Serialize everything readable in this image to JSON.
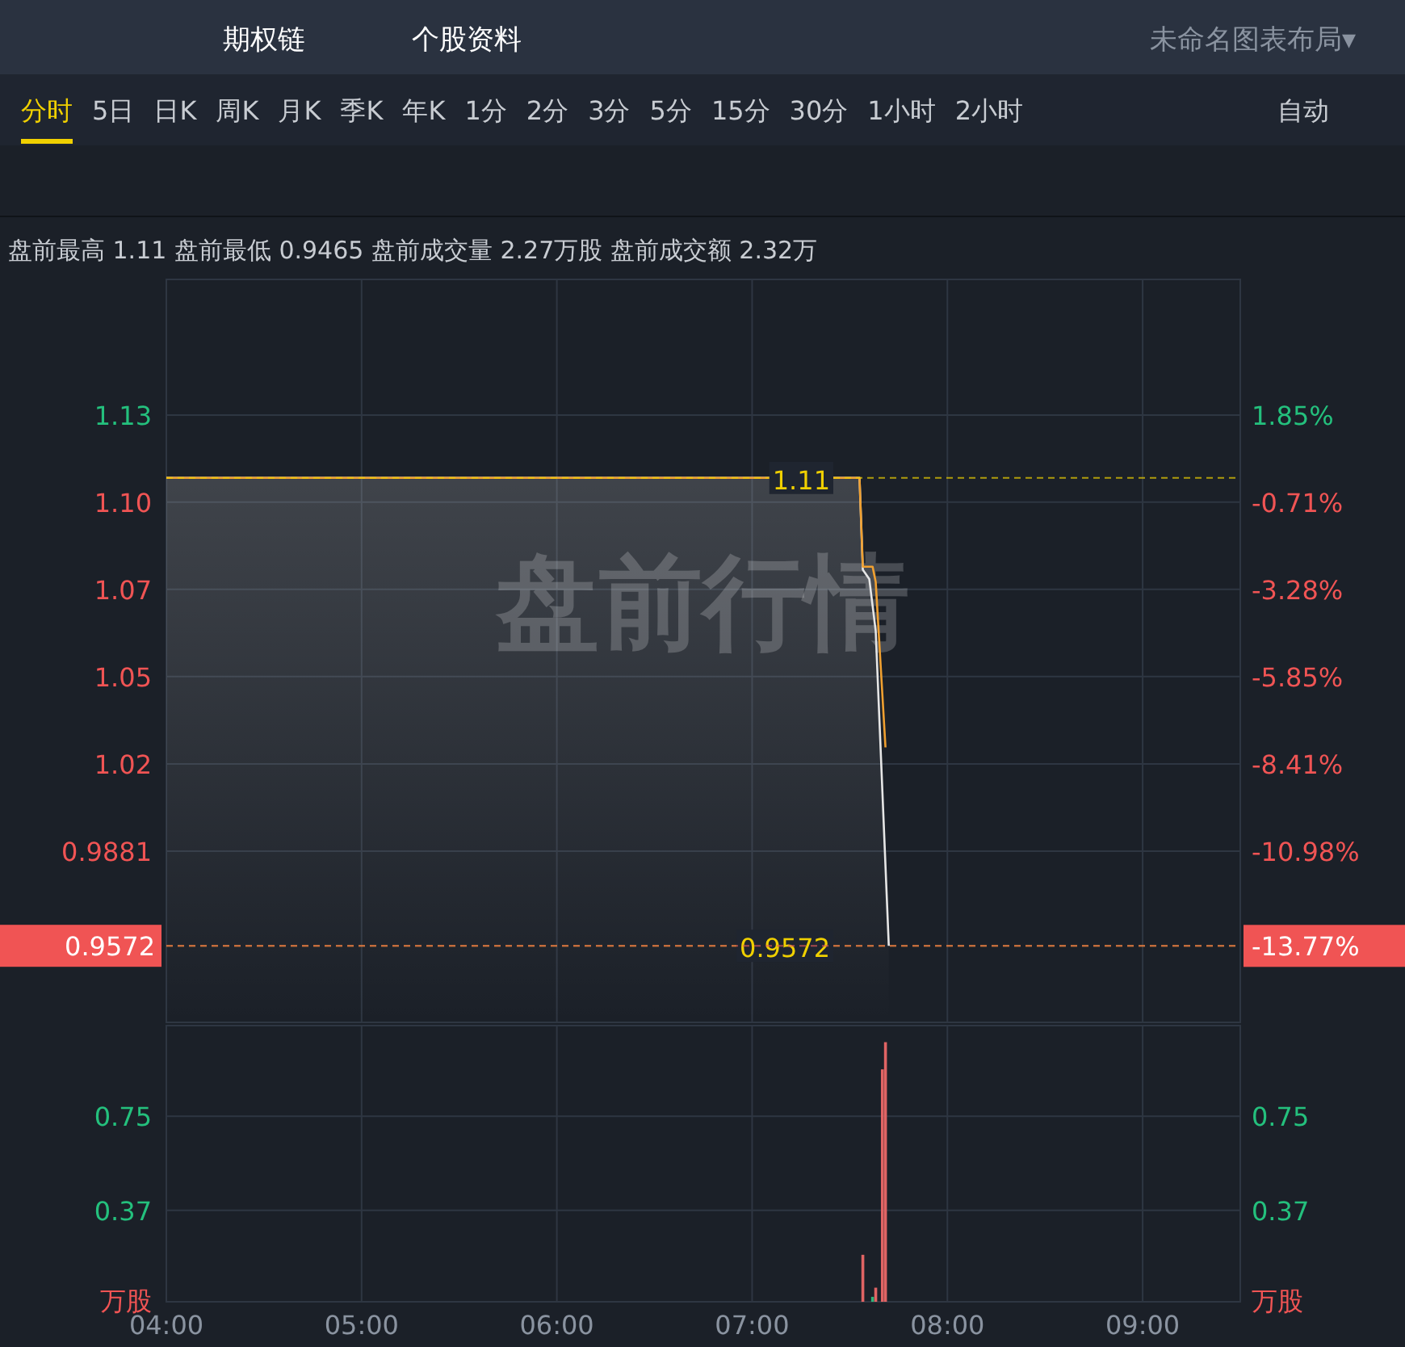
{
  "chart_data": [
    {
      "type": "other",
      "annotations": [
        "期权链",
        "个股资料",
        "未命名图表布局▾",
        "分时",
        "5日",
        "日K",
        "周K",
        "月K",
        "季K",
        "年K",
        "1分",
        "2分",
        "3分",
        "5分",
        "15分",
        "30分",
        "1小时",
        "2小时",
        "自动"
      ]
    },
    {
      "type": "line",
      "title": "盘前最高 1.11 盘前最低 0.9465 盘前成交量 2.27万股 盘前成交额 2.32万",
      "annotations": [
        "盘前行情"
      ],
      "tick_labels": "y",
      "xlim": [
        4,
        9.5
      ],
      "xticks": [
        {
          "value": 4,
          "label": null
        },
        {
          "value": 5,
          "label": null
        },
        {
          "value": 6,
          "label": null
        },
        {
          "value": 7,
          "label": null
        },
        {
          "value": 8,
          "label": null
        },
        {
          "value": 9,
          "label": null
        }
      ],
      "ylim": [
        0.9322,
        1.1748
      ],
      "yticks": [
        {
          "value": 1.1305,
          "label": "1.13"
        },
        {
          "value": 1.1021,
          "label": "1.10"
        },
        {
          "value": 1.0736,
          "label": "1.07"
        },
        {
          "value": 1.0451,
          "label": "1.05"
        },
        {
          "value": 1.0166,
          "label": "1.02"
        },
        {
          "value": 0.9881,
          "label": "0.9881"
        },
        {
          "value": 0.9572,
          "label": "0.9572"
        }
      ],
      "y2lim": [
        -16.02,
        5.84
      ],
      "y2ticks": [
        {
          "value": 1.85,
          "label": "1.85%"
        },
        {
          "value": -0.71,
          "label": "-0.71%"
        },
        {
          "value": -3.28,
          "label": "-3.28%"
        },
        {
          "value": -5.85,
          "label": "-5.85%"
        },
        {
          "value": -8.41,
          "label": "-8.41%"
        },
        {
          "value": -10.98,
          "label": "-10.98%"
        },
        {
          "value": -13.77,
          "label": "-13.77%"
        }
      ],
      "grid": true,
      "ref_lines": [
        {
          "axis": "y",
          "value": 0.9572,
          "label": "0.9572",
          "color": "#f0d000",
          "line_style": "dashed"
        },
        {
          "axis": "y2",
          "value": -13.77,
          "color": "#e05a5a",
          "line_style": "dashed"
        },
        {
          "axis": "y",
          "value": 1.11,
          "label": "1.11",
          "color": "#f0d000",
          "line_style": "dashed"
        }
      ],
      "series": [
        {
          "type": "area",
          "color": "#e6e6e6",
          "x": [
            4,
            7.55,
            7.567,
            7.6,
            7.633,
            7.7
          ],
          "values": [
            1.11,
            1.11,
            1.08,
            1.077,
            1.06,
            0.9572
          ]
        },
        {
          "type": "line",
          "color": "#f0a030",
          "x": [
            4,
            7.55,
            7.567,
            7.617,
            7.633,
            7.683
          ],
          "values": [
            1.11,
            1.11,
            1.081,
            1.081,
            1.076,
            1.022
          ]
        }
      ]
    },
    {
      "type": "bar",
      "xlim": [
        4,
        9.5
      ],
      "xticks": [
        {
          "value": 4,
          "label": "04:00"
        },
        {
          "value": 5,
          "label": "05:00"
        },
        {
          "value": 6,
          "label": "06:00"
        },
        {
          "value": 7,
          "label": "07:00"
        },
        {
          "value": 8,
          "label": "08:00"
        },
        {
          "value": 9,
          "label": "09:00"
        }
      ],
      "ylim": [
        0,
        1.117
      ],
      "yticks": [
        0.75,
        0.37,
        {
          "value": 0,
          "label": "万股"
        }
      ],
      "y2lim": [
        0,
        1.117
      ],
      "y2ticks": [
        0.75,
        0.37,
        {
          "value": 0,
          "label": "万股"
        }
      ],
      "grid": true,
      "x": [
        7.567,
        7.617,
        7.633,
        7.667,
        7.683
      ],
      "values": [
        0.19,
        0.02,
        0.057,
        0.94,
        1.05
      ],
      "colors": [
        "#e06464",
        "#2fb37a",
        "#e06464",
        "#e06464",
        "#e06464"
      ]
    }
  ]
}
